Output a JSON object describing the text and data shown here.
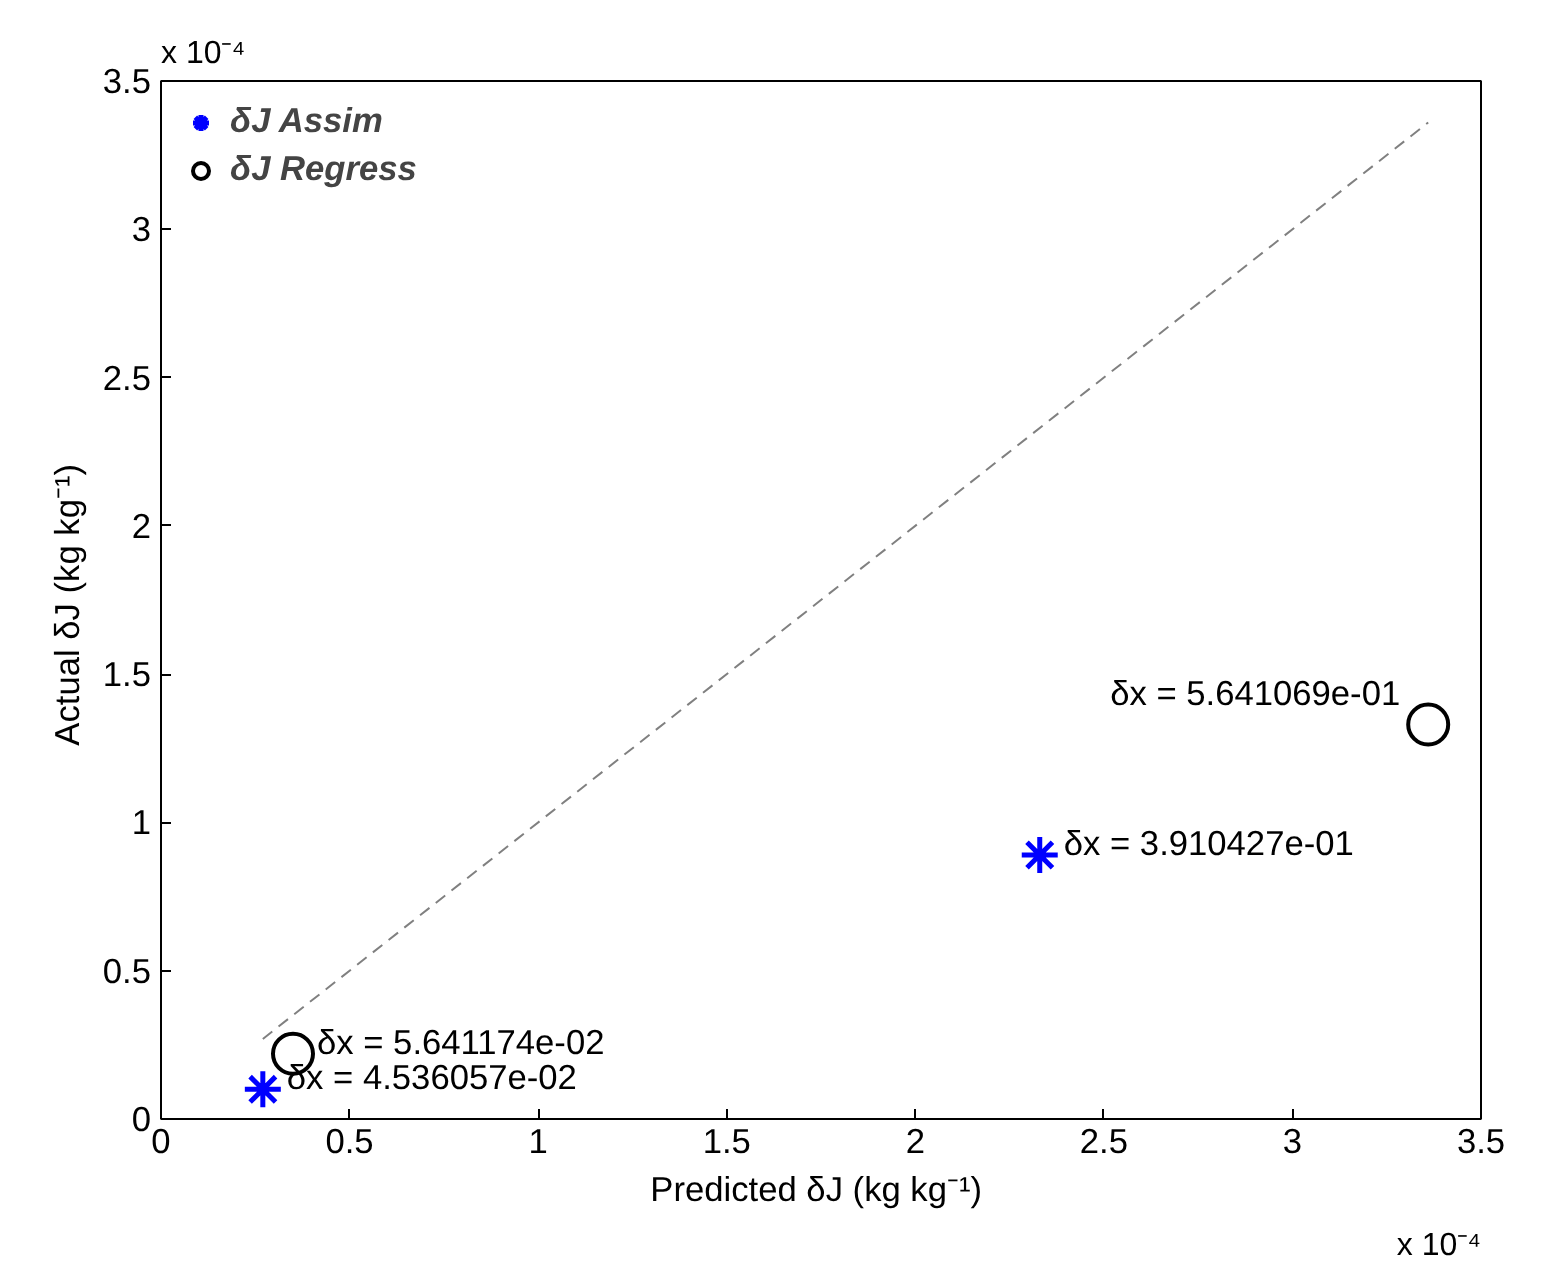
{
  "chart_data": {
    "type": "scatter",
    "xlabel": "Predicted  δJ (kg kg⁻¹)",
    "ylabel": "Actual  δJ (kg kg⁻¹)",
    "xlim": [
      0,
      3.5
    ],
    "ylim": [
      0,
      3.5
    ],
    "xticks": [
      0,
      0.5,
      1,
      1.5,
      2,
      2.5,
      3,
      3.5
    ],
    "yticks": [
      0,
      0.5,
      1,
      1.5,
      2,
      2.5,
      3,
      3.5
    ],
    "grid": false,
    "legend": "top left",
    "series": [
      {
        "name": "δJ Assim",
        "color": "#0000ff",
        "marker": "cross",
        "x": [
          0.27,
          2.33
        ],
        "values": [
          0.1,
          0.89
        ]
      },
      {
        "name": "δJ Regress",
        "color": "#000000",
        "marker": "circle",
        "x": [
          0.35,
          3.36
        ],
        "values": [
          0.22,
          1.33
        ]
      },
      {
        "type": "line",
        "color": "#808080",
        "line_style": "dashed",
        "x": [
          0.27,
          3.36
        ],
        "values": [
          0.27,
          3.36
        ]
      }
    ],
    "annotations": [
      "x 10⁻⁴",
      "x 10⁻⁴",
      {
        "text": "δx = 4.536057e-02",
        "x": 0.27,
        "y": 0.1
      },
      {
        "text": "δx = 3.910427e-01",
        "x": 2.33,
        "y": 0.89
      },
      {
        "text": "δx = 5.641174e-02",
        "x": 0.35,
        "y": 0.22
      },
      {
        "text": "δx = 5.641069e-01",
        "x": 3.36,
        "y": 1.33
      }
    ]
  }
}
